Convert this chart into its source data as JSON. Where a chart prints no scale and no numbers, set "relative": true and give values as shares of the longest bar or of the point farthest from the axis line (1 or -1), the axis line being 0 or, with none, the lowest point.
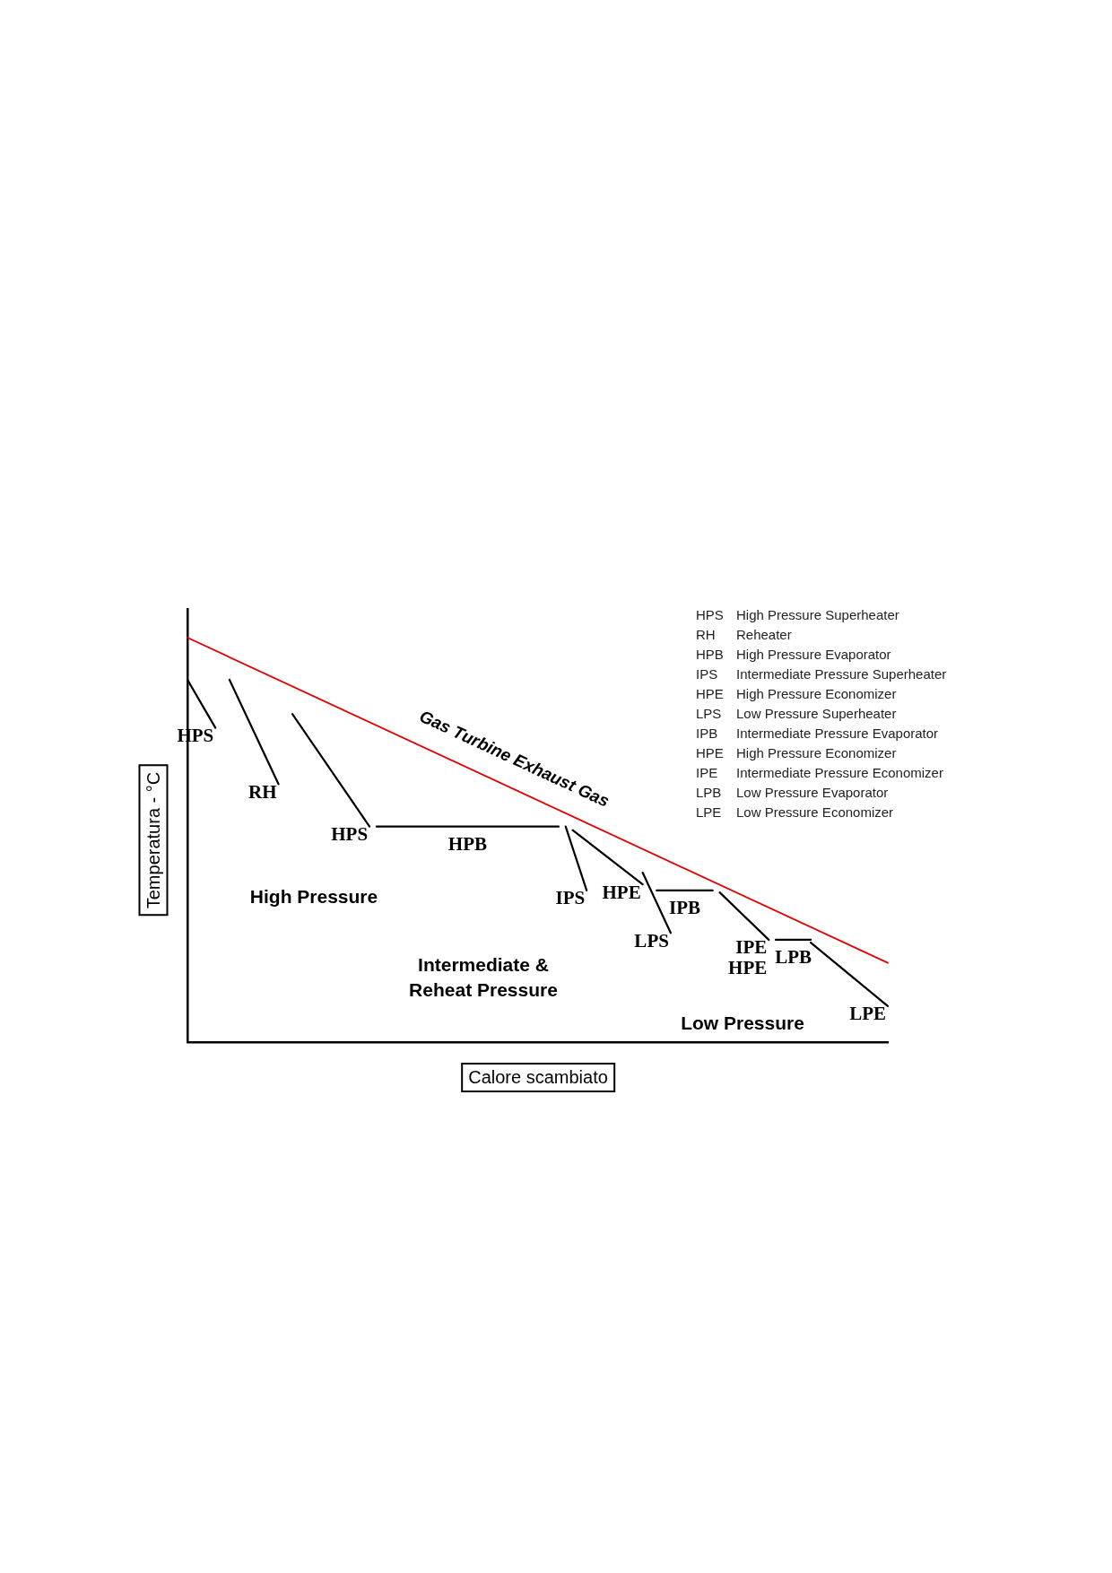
{
  "chart_data": {
    "type": "line",
    "relative": true,
    "xlabel": "Calore scambiato",
    "ylabel": "Temperatura - °C",
    "legend": false,
    "grid": false,
    "marker": "none",
    "line_style": "solid",
    "categories": [
      null,
      null,
      null,
      null,
      null,
      null,
      null,
      null,
      null,
      null,
      null,
      null,
      null,
      null,
      null,
      null,
      null,
      null,
      null,
      null,
      null,
      null,
      null,
      null,
      null,
      null,
      null,
      null,
      null,
      null,
      null,
      null,
      null,
      null,
      null,
      null,
      null,
      null,
      null,
      null,
      null,
      null,
      null,
      null,
      null,
      null,
      null,
      null,
      null,
      null,
      null,
      null,
      null,
      null,
      null,
      null,
      null,
      null,
      null,
      null,
      null,
      null,
      null,
      null,
      null,
      null,
      null,
      null,
      null,
      null,
      null,
      null,
      null,
      null,
      null,
      null,
      null,
      null,
      null,
      null,
      null,
      null,
      null,
      null,
      null,
      null,
      null,
      null,
      null,
      null,
      null,
      null,
      null,
      null,
      null,
      null,
      null,
      null,
      null,
      null,
      null
    ],
    "series": [
      {
        "name": "Gas Turbine Exhaust Gas",
        "color": "#e00000",
        "values": [
          1.0,
          null,
          null,
          null,
          null,
          null,
          null,
          null,
          null,
          null,
          null,
          null,
          null,
          null,
          null,
          null,
          null,
          null,
          null,
          null,
          null,
          null,
          null,
          null,
          null,
          null,
          null,
          null,
          null,
          null,
          null,
          null,
          null,
          null,
          null,
          null,
          null,
          null,
          null,
          null,
          null,
          null,
          null,
          null,
          null,
          null,
          null,
          null,
          null,
          null,
          null,
          null,
          null,
          null,
          null,
          null,
          null,
          null,
          null,
          null,
          null,
          null,
          null,
          null,
          null,
          null,
          null,
          null,
          null,
          null,
          null,
          null,
          null,
          null,
          null,
          null,
          null,
          null,
          null,
          null,
          null,
          null,
          null,
          null,
          null,
          null,
          null,
          null,
          null,
          null,
          null,
          null,
          null,
          null,
          null,
          null,
          null,
          null,
          null,
          null,
          0.196
        ]
      },
      {
        "name": "HPS",
        "color": "#000000",
        "values": [
          0.896,
          null,
          null,
          null,
          0.777,
          null,
          null,
          null,
          null,
          null,
          null,
          null,
          null,
          null,
          null,
          null,
          null,
          null,
          null,
          null,
          null,
          null,
          null,
          null,
          null,
          null,
          null,
          null,
          null,
          null,
          null,
          null,
          null,
          null,
          null,
          null,
          null,
          null,
          null,
          null,
          null,
          null,
          null,
          null,
          null,
          null,
          null,
          null,
          null,
          null,
          null,
          null,
          null,
          null,
          null,
          null,
          null,
          null,
          null,
          null,
          null,
          null,
          null,
          null,
          null,
          null,
          null,
          null,
          null,
          null,
          null,
          null,
          null,
          null,
          null,
          null,
          null,
          null,
          null,
          null,
          null,
          null,
          null,
          null,
          null,
          null,
          null,
          null,
          null,
          null,
          null,
          null,
          null,
          null,
          null,
          null,
          null,
          null,
          null,
          null,
          null
        ]
      },
      {
        "name": "RH",
        "color": "#000000",
        "values": [
          null,
          null,
          null,
          null,
          null,
          null,
          0.896,
          null,
          null,
          null,
          null,
          null,
          null,
          0.638,
          null,
          null,
          null,
          null,
          null,
          null,
          null,
          null,
          null,
          null,
          null,
          null,
          null,
          null,
          null,
          null,
          null,
          null,
          null,
          null,
          null,
          null,
          null,
          null,
          null,
          null,
          null,
          null,
          null,
          null,
          null,
          null,
          null,
          null,
          null,
          null,
          null,
          null,
          null,
          null,
          null,
          null,
          null,
          null,
          null,
          null,
          null,
          null,
          null,
          null,
          null,
          null,
          null,
          null,
          null,
          null,
          null,
          null,
          null,
          null,
          null,
          null,
          null,
          null,
          null,
          null,
          null,
          null,
          null,
          null,
          null,
          null,
          null,
          null,
          null,
          null,
          null,
          null,
          null,
          null,
          null,
          null,
          null,
          null,
          null,
          null,
          null
        ]
      },
      {
        "name": "HPS",
        "color": "#000000",
        "values": [
          null,
          null,
          null,
          null,
          null,
          null,
          null,
          null,
          null,
          null,
          null,
          null,
          null,
          null,
          null,
          0.811,
          null,
          null,
          null,
          null,
          null,
          null,
          null,
          null,
          null,
          null,
          0.533,
          null,
          null,
          null,
          null,
          null,
          null,
          null,
          null,
          null,
          null,
          null,
          null,
          null,
          null,
          null,
          null,
          null,
          null,
          null,
          null,
          null,
          null,
          null,
          null,
          null,
          null,
          null,
          null,
          null,
          null,
          null,
          null,
          null,
          null,
          null,
          null,
          null,
          null,
          null,
          null,
          null,
          null,
          null,
          null,
          null,
          null,
          null,
          null,
          null,
          null,
          null,
          null,
          null,
          null,
          null,
          null,
          null,
          null,
          null,
          null,
          null,
          null,
          null,
          null,
          null,
          null,
          null,
          null,
          null,
          null,
          null,
          null,
          null,
          null
        ]
      },
      {
        "name": "HPB",
        "color": "#000000",
        "values": [
          null,
          null,
          null,
          null,
          null,
          null,
          null,
          null,
          null,
          null,
          null,
          null,
          null,
          null,
          null,
          null,
          null,
          null,
          null,
          null,
          null,
          null,
          null,
          null,
          null,
          null,
          null,
          0.533,
          null,
          null,
          null,
          null,
          null,
          null,
          null,
          null,
          null,
          null,
          null,
          null,
          null,
          null,
          null,
          null,
          null,
          null,
          null,
          null,
          null,
          null,
          null,
          null,
          null,
          0.533,
          null,
          null,
          null,
          null,
          null,
          null,
          null,
          null,
          null,
          null,
          null,
          null,
          null,
          null,
          null,
          null,
          null,
          null,
          null,
          null,
          null,
          null,
          null,
          null,
          null,
          null,
          null,
          null,
          null,
          null,
          null,
          null,
          null,
          null,
          null,
          null,
          null,
          null,
          null,
          null,
          null,
          null,
          null,
          null,
          null,
          null,
          null
        ]
      },
      {
        "name": "IPS",
        "color": "#000000",
        "values": [
          null,
          null,
          null,
          null,
          null,
          null,
          null,
          null,
          null,
          null,
          null,
          null,
          null,
          null,
          null,
          null,
          null,
          null,
          null,
          null,
          null,
          null,
          null,
          null,
          null,
          null,
          null,
          null,
          null,
          null,
          null,
          null,
          null,
          null,
          null,
          null,
          null,
          null,
          null,
          null,
          null,
          null,
          null,
          null,
          null,
          null,
          null,
          null,
          null,
          null,
          null,
          null,
          null,
          null,
          0.533,
          null,
          null,
          0.375,
          null,
          null,
          null,
          null,
          null,
          null,
          null,
          null,
          null,
          null,
          null,
          null,
          null,
          null,
          null,
          null,
          null,
          null,
          null,
          null,
          null,
          null,
          null,
          null,
          null,
          null,
          null,
          null,
          null,
          null,
          null,
          null,
          null,
          null,
          null,
          null,
          null,
          null,
          null,
          null,
          null,
          null,
          null
        ]
      },
      {
        "name": "HPE",
        "color": "#000000",
        "values": [
          null,
          null,
          null,
          null,
          null,
          null,
          null,
          null,
          null,
          null,
          null,
          null,
          null,
          null,
          null,
          null,
          null,
          null,
          null,
          null,
          null,
          null,
          null,
          null,
          null,
          null,
          null,
          null,
          null,
          null,
          null,
          null,
          null,
          null,
          null,
          null,
          null,
          null,
          null,
          null,
          null,
          null,
          null,
          null,
          null,
          null,
          null,
          null,
          null,
          null,
          null,
          null,
          null,
          null,
          null,
          0.524,
          null,
          null,
          null,
          null,
          null,
          null,
          null,
          null,
          null,
          0.39,
          null,
          null,
          null,
          null,
          null,
          null,
          null,
          null,
          null,
          null,
          null,
          null,
          null,
          null,
          null,
          null,
          null,
          null,
          null,
          null,
          null,
          null,
          null,
          null,
          null,
          null,
          null,
          null,
          null,
          null,
          null,
          null,
          null,
          null,
          null
        ]
      },
      {
        "name": "LPS",
        "color": "#000000",
        "values": [
          null,
          null,
          null,
          null,
          null,
          null,
          null,
          null,
          null,
          null,
          null,
          null,
          null,
          null,
          null,
          null,
          null,
          null,
          null,
          null,
          null,
          null,
          null,
          null,
          null,
          null,
          null,
          null,
          null,
          null,
          null,
          null,
          null,
          null,
          null,
          null,
          null,
          null,
          null,
          null,
          null,
          null,
          null,
          null,
          null,
          null,
          null,
          null,
          null,
          null,
          null,
          null,
          null,
          null,
          null,
          null,
          null,
          null,
          null,
          null,
          null,
          null,
          null,
          null,
          null,
          0.419,
          null,
          null,
          null,
          0.27,
          null,
          null,
          null,
          null,
          null,
          null,
          null,
          null,
          null,
          null,
          null,
          null,
          null,
          null,
          null,
          null,
          null,
          null,
          null,
          null,
          null,
          null,
          null,
          null,
          null,
          null,
          null,
          null,
          null,
          null,
          null
        ]
      },
      {
        "name": "IPB",
        "color": "#000000",
        "values": [
          null,
          null,
          null,
          null,
          null,
          null,
          null,
          null,
          null,
          null,
          null,
          null,
          null,
          null,
          null,
          null,
          null,
          null,
          null,
          null,
          null,
          null,
          null,
          null,
          null,
          null,
          null,
          null,
          null,
          null,
          null,
          null,
          null,
          null,
          null,
          null,
          null,
          null,
          null,
          null,
          null,
          null,
          null,
          null,
          null,
          null,
          null,
          null,
          null,
          null,
          null,
          null,
          null,
          null,
          null,
          null,
          null,
          null,
          null,
          null,
          null,
          null,
          null,
          null,
          null,
          null,
          null,
          0.375,
          null,
          null,
          null,
          null,
          null,
          null,
          null,
          0.375,
          null,
          null,
          null,
          null,
          null,
          null,
          null,
          null,
          null,
          null,
          null,
          null,
          null,
          null,
          null,
          null,
          null,
          null,
          null,
          null,
          null,
          null,
          null,
          null,
          null
        ]
      },
      {
        "name": "IPE HPE",
        "color": "#000000",
        "values": [
          null,
          null,
          null,
          null,
          null,
          null,
          null,
          null,
          null,
          null,
          null,
          null,
          null,
          null,
          null,
          null,
          null,
          null,
          null,
          null,
          null,
          null,
          null,
          null,
          null,
          null,
          null,
          null,
          null,
          null,
          null,
          null,
          null,
          null,
          null,
          null,
          null,
          null,
          null,
          null,
          null,
          null,
          null,
          null,
          null,
          null,
          null,
          null,
          null,
          null,
          null,
          null,
          null,
          null,
          null,
          null,
          null,
          null,
          null,
          null,
          null,
          null,
          null,
          null,
          null,
          null,
          null,
          null,
          null,
          null,
          null,
          null,
          null,
          null,
          null,
          null,
          0.37,
          null,
          null,
          null,
          null,
          null,
          null,
          0.253,
          null,
          null,
          null,
          null,
          null,
          null,
          null,
          null,
          null,
          null,
          null,
          null,
          null,
          null,
          null,
          null,
          null
        ]
      },
      {
        "name": "LPB",
        "color": "#000000",
        "values": [
          null,
          null,
          null,
          null,
          null,
          null,
          null,
          null,
          null,
          null,
          null,
          null,
          null,
          null,
          null,
          null,
          null,
          null,
          null,
          null,
          null,
          null,
          null,
          null,
          null,
          null,
          null,
          null,
          null,
          null,
          null,
          null,
          null,
          null,
          null,
          null,
          null,
          null,
          null,
          null,
          null,
          null,
          null,
          null,
          null,
          null,
          null,
          null,
          null,
          null,
          null,
          null,
          null,
          null,
          null,
          null,
          null,
          null,
          null,
          null,
          null,
          null,
          null,
          null,
          null,
          null,
          null,
          null,
          null,
          null,
          null,
          null,
          null,
          null,
          null,
          null,
          null,
          null,
          null,
          null,
          null,
          null,
          null,
          null,
          0.253,
          null,
          null,
          null,
          null,
          0.253,
          null,
          null,
          null,
          null,
          null,
          null,
          null,
          null,
          null,
          null,
          null
        ]
      },
      {
        "name": "LPE",
        "color": "#000000",
        "values": [
          null,
          null,
          null,
          null,
          null,
          null,
          null,
          null,
          null,
          null,
          null,
          null,
          null,
          null,
          null,
          null,
          null,
          null,
          null,
          null,
          null,
          null,
          null,
          null,
          null,
          null,
          null,
          null,
          null,
          null,
          null,
          null,
          null,
          null,
          null,
          null,
          null,
          null,
          null,
          null,
          null,
          null,
          null,
          null,
          null,
          null,
          null,
          null,
          null,
          null,
          null,
          null,
          null,
          null,
          null,
          null,
          null,
          null,
          null,
          null,
          null,
          null,
          null,
          null,
          null,
          null,
          null,
          null,
          null,
          null,
          null,
          null,
          null,
          null,
          null,
          null,
          null,
          null,
          null,
          null,
          null,
          null,
          null,
          null,
          null,
          null,
          null,
          null,
          null,
          0.246,
          null,
          null,
          null,
          null,
          null,
          null,
          null,
          null,
          null,
          null,
          0.089
        ]
      }
    ],
    "annotations": [
      "High Pressure",
      "Intermediate &\nReheat Pressure",
      "Low Pressure",
      "HPS High Pressure Superheater",
      "RH Reheater",
      "HPB High Pressure Evaporator",
      "IPS Intermediate Pressure Superheater",
      "HPE High Pressure Economizer",
      "LPS Low Pressure Superheater",
      "IPB Intermediate Pressure Evaporator",
      "HPE High Pressure Economizer",
      "IPE Intermediate Pressure Economizer",
      "LPB Low Pressure Evaporator",
      "LPE Low Pressure Economizer"
    ]
  }
}
